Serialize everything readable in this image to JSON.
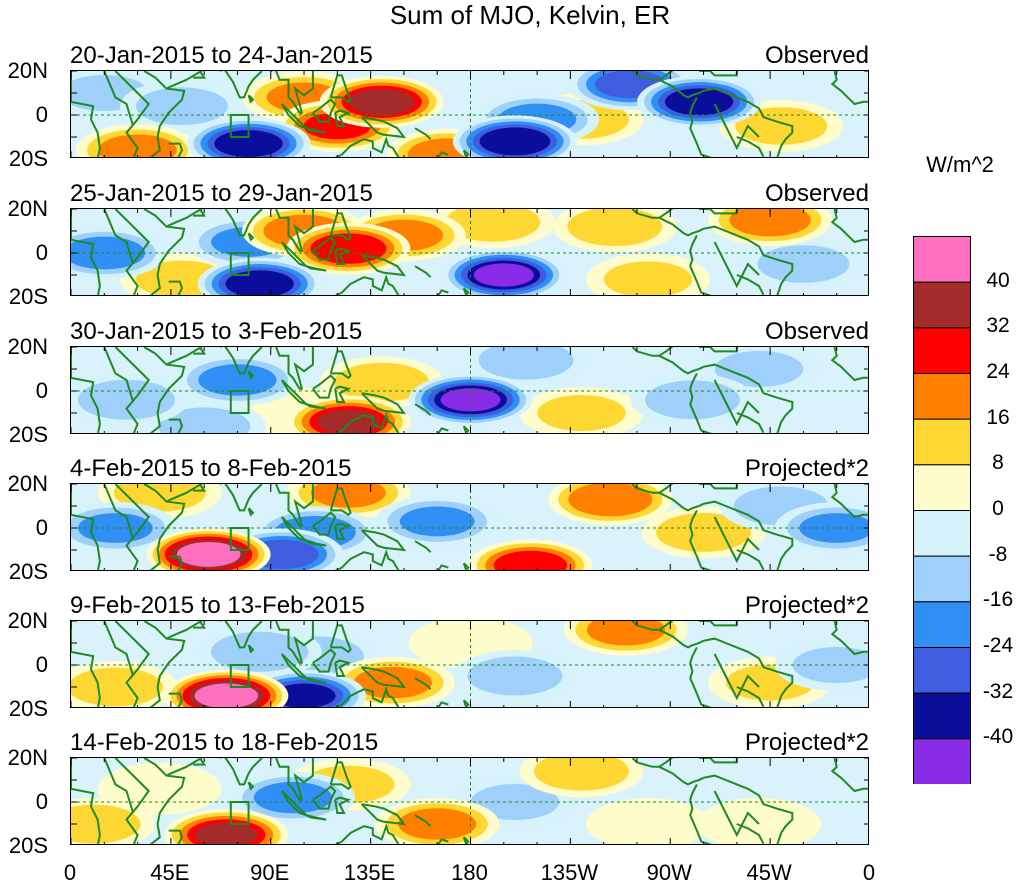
{
  "title": "Sum of MJO, Kelvin, ER",
  "units": "W/m^2",
  "lat_labels": [
    "20N",
    "0",
    "20S"
  ],
  "lon_labels": [
    "0",
    "45E",
    "90E",
    "135E",
    "180",
    "135W",
    "90W",
    "45W",
    "0"
  ],
  "colorbar": {
    "labels": [
      "40",
      "32",
      "24",
      "16",
      "8",
      "0",
      "-8",
      "-16",
      "-24",
      "-32",
      "-40"
    ],
    "colors": [
      "#ff6fc0",
      "#a52a2a",
      "#ff0000",
      "#ff7f00",
      "#ffd732",
      "#fffccc",
      "#d6f3fc",
      "#9ed0fb",
      "#2f8ff5",
      "#3f5de0",
      "#0b0e9a",
      "#8a2be8"
    ]
  },
  "panels": [
    {
      "date_range": "20-Jan-2015 to 24-Jan-2015",
      "status": "Observed",
      "blobs": [
        {
          "lon": 140,
          "lat": 6,
          "value": 36
        },
        {
          "lon": 120,
          "lat": -5,
          "value": 26
        },
        {
          "lon": 105,
          "lat": 8,
          "value": 18
        },
        {
          "lon": 30,
          "lat": -16,
          "value": 20
        },
        {
          "lon": 80,
          "lat": -13,
          "value": -38
        },
        {
          "lon": 200,
          "lat": -12,
          "value": -40
        },
        {
          "lon": 210,
          "lat": -2,
          "value": -20
        },
        {
          "lon": 283,
          "lat": 6,
          "value": -38
        },
        {
          "lon": 252,
          "lat": 14,
          "value": -28
        },
        {
          "lon": 230,
          "lat": -2,
          "value": 14
        },
        {
          "lon": 320,
          "lat": -5,
          "value": 12
        },
        {
          "lon": 50,
          "lat": 4,
          "value": -12
        },
        {
          "lon": 170,
          "lat": -18,
          "value": 22
        },
        {
          "lon": 15,
          "lat": 10,
          "value": -10
        }
      ]
    },
    {
      "date_range": "25-Jan-2015 to 29-Jan-2015",
      "status": "Observed",
      "blobs": [
        {
          "lon": 125,
          "lat": 2,
          "value": 32
        },
        {
          "lon": 105,
          "lat": 10,
          "value": 22
        },
        {
          "lon": 150,
          "lat": 8,
          "value": 20
        },
        {
          "lon": 85,
          "lat": -14,
          "value": -38
        },
        {
          "lon": 195,
          "lat": -10,
          "value": -42
        },
        {
          "lon": 15,
          "lat": 0,
          "value": -22
        },
        {
          "lon": 80,
          "lat": 5,
          "value": -18
        },
        {
          "lon": 190,
          "lat": 14,
          "value": 14
        },
        {
          "lon": 245,
          "lat": 12,
          "value": 14
        },
        {
          "lon": 315,
          "lat": 15,
          "value": 22
        },
        {
          "lon": 330,
          "lat": -5,
          "value": -12
        },
        {
          "lon": 260,
          "lat": -12,
          "value": 10
        },
        {
          "lon": 50,
          "lat": -12,
          "value": 12
        }
      ]
    },
    {
      "date_range": "30-Jan-2015 to 3-Feb-2015",
      "status": "Observed",
      "blobs": [
        {
          "lon": 125,
          "lat": -14,
          "value": 34
        },
        {
          "lon": 140,
          "lat": 4,
          "value": 14
        },
        {
          "lon": 180,
          "lat": -4,
          "value": -42
        },
        {
          "lon": 75,
          "lat": 5,
          "value": -20
        },
        {
          "lon": 25,
          "lat": -4,
          "value": -16
        },
        {
          "lon": 205,
          "lat": 14,
          "value": -14
        },
        {
          "lon": 230,
          "lat": -10,
          "value": 10
        },
        {
          "lon": 280,
          "lat": -4,
          "value": -14
        },
        {
          "lon": 310,
          "lat": 10,
          "value": -10
        },
        {
          "lon": 60,
          "lat": -16,
          "value": -12
        },
        {
          "lon": 100,
          "lat": -10,
          "value": 8
        }
      ]
    },
    {
      "date_range": "4-Feb-2015 to 8-Feb-2015",
      "status": "Projected*2",
      "blobs": [
        {
          "lon": 62,
          "lat": -12,
          "value": 45
        },
        {
          "lon": 207,
          "lat": -17,
          "value": 30
        },
        {
          "lon": 243,
          "lat": 13,
          "value": 24
        },
        {
          "lon": 125,
          "lat": 16,
          "value": 18
        },
        {
          "lon": 40,
          "lat": 16,
          "value": 12
        },
        {
          "lon": 110,
          "lat": -2,
          "value": -22
        },
        {
          "lon": 165,
          "lat": 3,
          "value": -18
        },
        {
          "lon": 95,
          "lat": -12,
          "value": -30
        },
        {
          "lon": 20,
          "lat": 0,
          "value": -18
        },
        {
          "lon": 285,
          "lat": -2,
          "value": 14
        },
        {
          "lon": 320,
          "lat": 10,
          "value": -14
        },
        {
          "lon": 345,
          "lat": 0,
          "value": -18
        }
      ]
    },
    {
      "date_range": "9-Feb-2015 to 13-Feb-2015",
      "status": "Projected*2",
      "blobs": [
        {
          "lon": 70,
          "lat": -14,
          "value": 45
        },
        {
          "lon": 145,
          "lat": -8,
          "value": 20
        },
        {
          "lon": 250,
          "lat": 16,
          "value": 20
        },
        {
          "lon": 20,
          "lat": -10,
          "value": 14
        },
        {
          "lon": 105,
          "lat": -14,
          "value": -34
        },
        {
          "lon": 110,
          "lat": 4,
          "value": -16
        },
        {
          "lon": 85,
          "lat": 6,
          "value": -16
        },
        {
          "lon": 200,
          "lat": -5,
          "value": -14
        },
        {
          "lon": 315,
          "lat": -8,
          "value": 10
        },
        {
          "lon": 345,
          "lat": 0,
          "value": -10
        },
        {
          "lon": 180,
          "lat": 10,
          "value": 8
        }
      ]
    },
    {
      "date_range": "14-Feb-2015 to 18-Feb-2015",
      "status": "Projected*2",
      "blobs": [
        {
          "lon": 70,
          "lat": -15,
          "value": 34
        },
        {
          "lon": 165,
          "lat": -10,
          "value": 20
        },
        {
          "lon": 10,
          "lat": -10,
          "value": 14
        },
        {
          "lon": 100,
          "lat": 2,
          "value": -20
        },
        {
          "lon": 125,
          "lat": 8,
          "value": 12
        },
        {
          "lon": 230,
          "lat": 14,
          "value": 14
        },
        {
          "lon": 200,
          "lat": 0,
          "value": -10
        },
        {
          "lon": 260,
          "lat": -10,
          "value": 8
        },
        {
          "lon": 310,
          "lat": -10,
          "value": 8
        },
        {
          "lon": 40,
          "lat": 6,
          "value": 8
        }
      ]
    }
  ]
}
